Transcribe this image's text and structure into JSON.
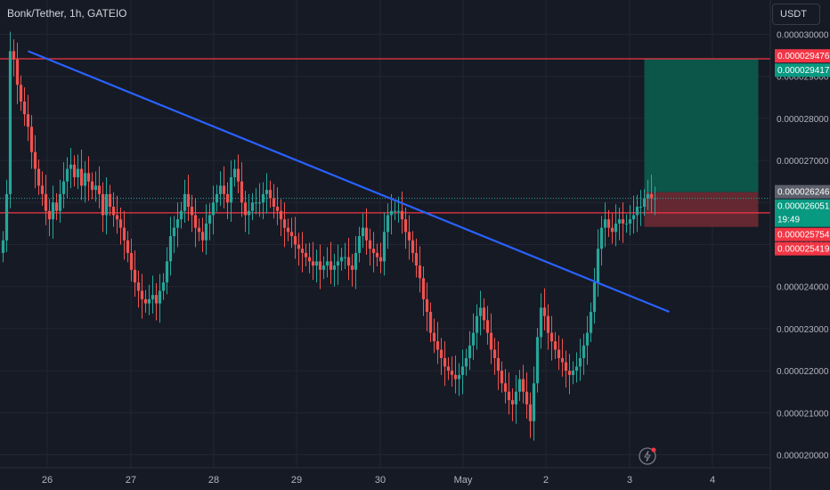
{
  "symbol_title": "Bonk/Tether, 1h, GATEIO",
  "currency_button": "USDT",
  "countdown": "19:49",
  "colors": {
    "background": "#161a25",
    "grid": "#232632",
    "bull": "#26a69a",
    "bear": "#ef5350",
    "trendline": "#2962ff",
    "hline": "#f23645",
    "target_zone": "#0b5c4e",
    "stop_zone": "#6b2a33",
    "axis_text": "#b2b5be"
  },
  "chart_data": {
    "type": "candlestick",
    "y_axis": {
      "ticks": [
        "0.000020000",
        "0.000021000",
        "0.000022000",
        "0.000023000",
        "0.000024000",
        "0.000025000",
        "0.000026000",
        "0.000027000",
        "0.000028000",
        "0.000029000",
        "0.000030000"
      ],
      "tick_values": [
        2e-05,
        2.1e-05,
        2.2e-05,
        2.3e-05,
        2.4e-05,
        2.5e-05,
        2.6e-05,
        2.7e-05,
        2.8e-05,
        2.9e-05,
        3e-05
      ]
    },
    "x_axis": {
      "labels": [
        "26",
        "27",
        "28",
        "29",
        "30",
        "May",
        "2",
        "3",
        "4"
      ]
    },
    "price_labels": [
      {
        "text": "0.000029476",
        "value": 2.9476e-05,
        "kind": "red"
      },
      {
        "text": "0.000029417",
        "value": 2.9417e-05,
        "kind": "green"
      },
      {
        "text": "0.000026246",
        "value": 2.6246e-05,
        "kind": "gray"
      },
      {
        "text": "0.000026051",
        "value": 2.6051e-05,
        "kind": "green_last"
      },
      {
        "text": "0.000025754",
        "value": 2.5754e-05,
        "kind": "red"
      },
      {
        "text": "0.000025419",
        "value": 2.5419e-05,
        "kind": "red"
      }
    ],
    "horizontal_lines": [
      2.9417e-05,
      2.5754e-05
    ],
    "trendline": {
      "start_index": 7,
      "start_price": 2.96e-05,
      "end_index": 187,
      "end_price": 2.34e-05
    },
    "position_zones": {
      "start_index": 180,
      "end_index": 212,
      "entry": 2.6246e-05,
      "target": 2.9417e-05,
      "stop": 2.5419e-05
    },
    "closes": [
      2.51e-05,
      2.62e-05,
      2.96e-05,
      2.94e-05,
      2.88e-05,
      2.84e-05,
      2.81e-05,
      2.78e-05,
      2.72e-05,
      2.68e-05,
      2.64e-05,
      2.62e-05,
      2.58e-05,
      2.56e-05,
      2.6e-05,
      2.58e-05,
      2.62e-05,
      2.65e-05,
      2.68e-05,
      2.69e-05,
      2.66e-05,
      2.68e-05,
      2.64e-05,
      2.67e-05,
      2.65e-05,
      2.63e-05,
      2.64e-05,
      2.62e-05,
      2.57e-05,
      2.62e-05,
      2.59e-05,
      2.57e-05,
      2.56e-05,
      2.54e-05,
      2.51e-05,
      2.48e-05,
      2.44e-05,
      2.41e-05,
      2.39e-05,
      2.37e-05,
      2.36e-05,
      2.37e-05,
      2.38e-05,
      2.36e-05,
      2.39e-05,
      2.41e-05,
      2.46e-05,
      2.52e-05,
      2.54e-05,
      2.56e-05,
      2.58e-05,
      2.62e-05,
      2.59e-05,
      2.57e-05,
      2.54e-05,
      2.53e-05,
      2.51e-05,
      2.55e-05,
      2.57e-05,
      2.6e-05,
      2.62e-05,
      2.64e-05,
      2.62e-05,
      2.6e-05,
      2.66e-05,
      2.68e-05,
      2.65e-05,
      2.6e-05,
      2.57e-05,
      2.58e-05,
      2.6e-05,
      2.6e-05,
      2.6e-05,
      2.62e-05,
      2.63e-05,
      2.61e-05,
      2.59e-05,
      2.58e-05,
      2.56e-05,
      2.54e-05,
      2.53e-05,
      2.52e-05,
      2.5e-05,
      2.49e-05,
      2.48e-05,
      2.47e-05,
      2.46e-05,
      2.45e-05,
      2.46e-05,
      2.44e-05,
      2.45e-05,
      2.46e-05,
      2.44e-05,
      2.45e-05,
      2.46e-05,
      2.47e-05,
      2.47e-05,
      2.45e-05,
      2.44e-05,
      2.48e-05,
      2.52e-05,
      2.54e-05,
      2.51e-05,
      2.49e-05,
      2.48e-05,
      2.47e-05,
      2.46e-05,
      2.53e-05,
      2.57e-05,
      2.58e-05,
      2.58e-05,
      2.58e-05,
      2.56e-05,
      2.53e-05,
      2.51e-05,
      2.48e-05,
      2.45e-05,
      2.42e-05,
      2.37e-05,
      2.34e-05,
      2.29e-05,
      2.27e-05,
      2.25e-05,
      2.23e-05,
      2.21e-05,
      2.2e-05,
      2.19e-05,
      2.18e-05,
      2.19e-05,
      2.21e-05,
      2.23e-05,
      2.26e-05,
      2.29e-05,
      2.33e-05,
      2.35e-05,
      2.32e-05,
      2.29e-05,
      2.25e-05,
      2.23e-05,
      2.2e-05,
      2.17e-05,
      2.15e-05,
      2.13e-05,
      2.12e-05,
      2.15e-05,
      2.18e-05,
      2.15e-05,
      2.12e-05,
      2.08e-05,
      2.17e-05,
      2.28e-05,
      2.35e-05,
      2.33e-05,
      2.29e-05,
      2.27e-05,
      2.25e-05,
      2.23e-05,
      2.22e-05,
      2.2e-05,
      2.19e-05,
      2.2e-05,
      2.21e-05,
      2.23e-05,
      2.26e-05,
      2.29e-05,
      2.34e-05,
      2.41e-05,
      2.49e-05,
      2.54e-05,
      2.56e-05,
      2.54e-05,
      2.53e-05,
      2.55e-05,
      2.56e-05,
      2.55e-05,
      2.55e-05,
      2.56e-05,
      2.57e-05,
      2.59e-05,
      2.59e-05,
      2.61e-05,
      2.62e-05,
      2.61e-05,
      2.61e-05
    ]
  }
}
